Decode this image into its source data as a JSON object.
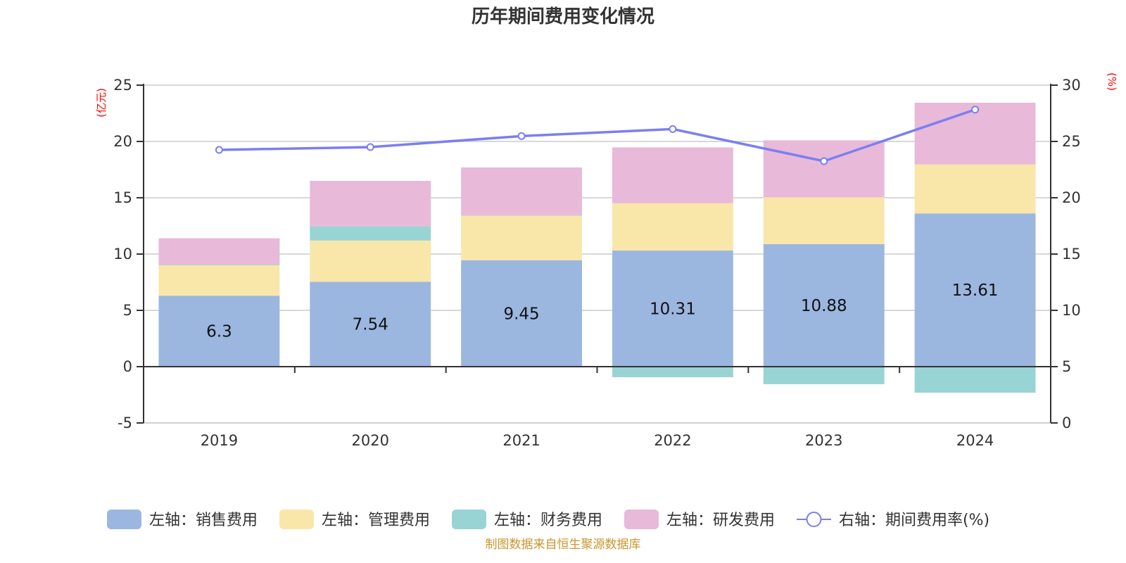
{
  "chart_data": {
    "type": "bar",
    "title": "历年期间费用变化情况",
    "categories": [
      "2019",
      "2020",
      "2021",
      "2022",
      "2023",
      "2024"
    ],
    "left_axis": {
      "unit_label": "(亿元)",
      "ylim": [
        -5,
        25
      ],
      "ticks": [
        -5,
        0,
        5,
        10,
        15,
        20,
        25
      ]
    },
    "right_axis": {
      "unit_label": "(%)",
      "ylim": [
        0,
        30
      ],
      "ticks": [
        0,
        5,
        10,
        15,
        20,
        25,
        30
      ]
    },
    "grid": true,
    "series": [
      {
        "name": "左轴：销售费用",
        "type": "bar",
        "axis": "left",
        "stack": "total",
        "color": "#9bb7e0",
        "values": [
          6.3,
          7.54,
          9.45,
          10.31,
          10.88,
          13.61
        ],
        "show_labels": true
      },
      {
        "name": "左轴：管理费用",
        "type": "bar",
        "axis": "left",
        "stack": "total",
        "color": "#f8e7a9",
        "values": [
          2.7,
          3.66,
          3.97,
          4.2,
          4.16,
          4.35
        ],
        "show_labels": false
      },
      {
        "name": "左轴：财务费用",
        "type": "bar",
        "axis": "left",
        "stack": "total",
        "color": "#98d4d4",
        "values": [
          0.05,
          1.26,
          0.02,
          -0.94,
          -1.56,
          -2.31
        ],
        "show_labels": false
      },
      {
        "name": "左轴：研发费用",
        "type": "bar",
        "axis": "left",
        "stack": "total",
        "color": "#e8b9d8",
        "values": [
          2.35,
          4.04,
          4.25,
          4.96,
          5.06,
          5.48
        ],
        "show_labels": false
      },
      {
        "name": "右轴：期间费用率(%)",
        "type": "line",
        "axis": "right",
        "color": "#7b7ff0",
        "values": [
          24.25,
          24.5,
          25.48,
          26.1,
          23.25,
          27.83
        ],
        "show_labels": false
      }
    ],
    "legend_position": "bottom",
    "source_note": "制图数据来自恒生聚源数据库"
  }
}
